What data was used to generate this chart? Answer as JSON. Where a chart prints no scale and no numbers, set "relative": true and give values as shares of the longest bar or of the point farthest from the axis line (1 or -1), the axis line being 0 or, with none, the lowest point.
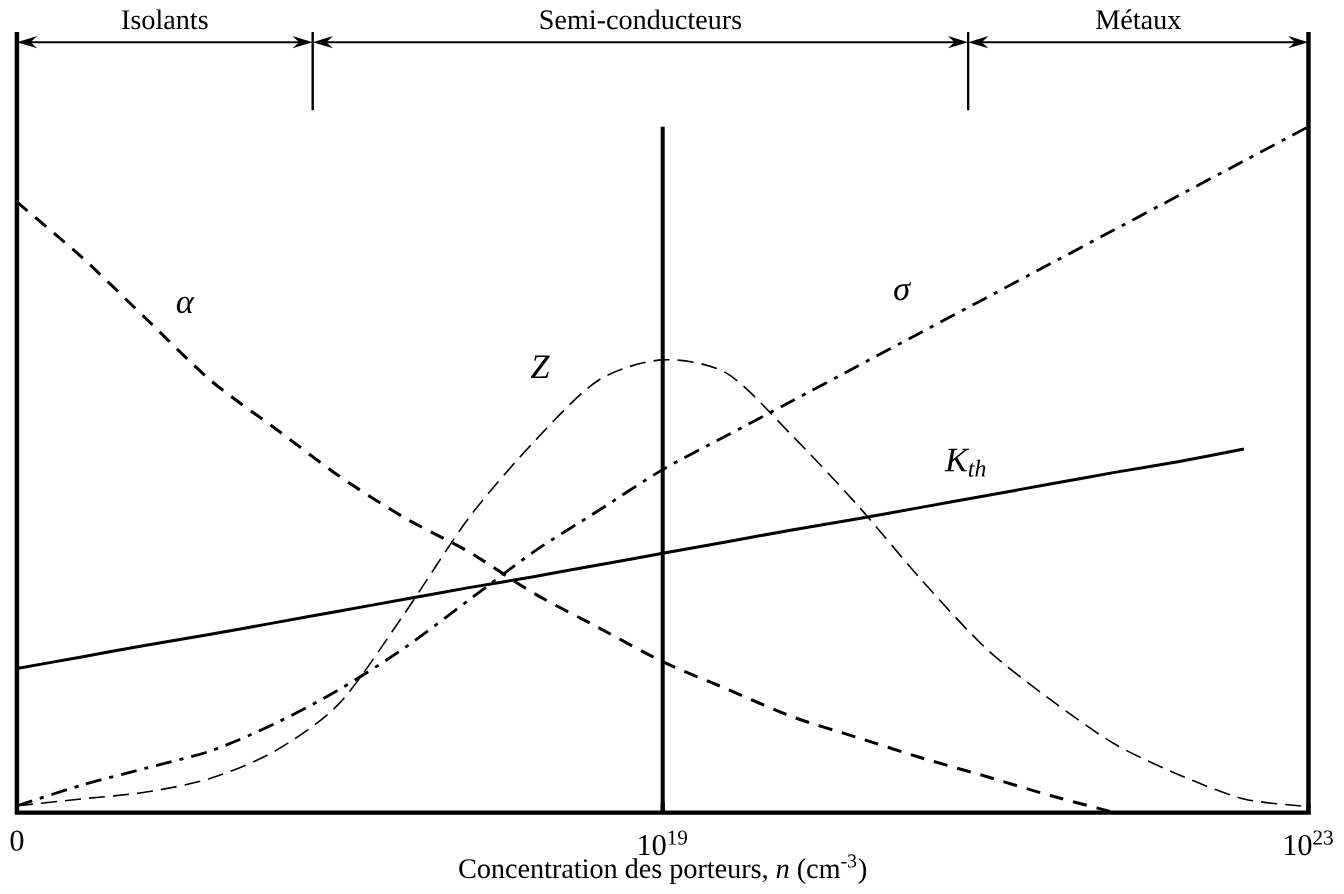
{
  "chart_data": {
    "type": "line",
    "relative": true,
    "xlabel": "Concentration des porteurs, *n* (cm$^{-3}$)",
    "categories": [
      "0",
      null,
      null,
      null,
      null,
      null,
      null,
      null,
      null,
      null,
      "10$^{19}$",
      null,
      null,
      null,
      null,
      null,
      null,
      null,
      null,
      null,
      "10$^{23}$"
    ],
    "series": [
      {
        "name": "α",
        "color": "#000000",
        "line_style": "dashed",
        "values": [
          0.89,
          0.81,
          0.72,
          0.63,
          0.56,
          0.49,
          0.43,
          0.38,
          0.32,
          0.27,
          0.22,
          0.18,
          0.14,
          0.11,
          0.08,
          0.053,
          0.025,
          0.0,
          null,
          null,
          null
        ]
      },
      {
        "name": "Z",
        "color": "#000000",
        "line_style": "dashed",
        "values": [
          0.01,
          0.02,
          0.03,
          0.05,
          0.09,
          0.16,
          0.29,
          0.43,
          0.54,
          0.63,
          0.66,
          0.64,
          0.55,
          0.45,
          0.34,
          0.24,
          0.165,
          0.1,
          0.055,
          0.02,
          0.009
        ]
      },
      {
        "name": "σ",
        "color": "#000000",
        "line_style": "dashdot",
        "values": [
          0.01,
          0.04,
          0.065,
          0.09,
          0.13,
          0.18,
          0.24,
          0.31,
          0.38,
          0.44,
          0.5,
          0.55,
          0.6,
          0.65,
          0.7,
          0.75,
          0.8,
          0.85,
          0.9,
          0.95,
          1.0
        ]
      },
      {
        "name": "K$_{th}$",
        "color": "#000000",
        "line_style": "solid",
        "values": [
          0.21,
          0.227,
          0.244,
          0.26,
          0.277,
          0.294,
          0.311,
          0.328,
          0.344,
          0.361,
          0.378,
          0.395,
          0.412,
          0.428,
          0.445,
          0.462,
          0.479,
          0.496,
          0.512,
          0.53,
          null
        ]
      }
    ],
    "ref_lines": [
      {
        "axis": "x",
        "value": "10$^{19}$"
      }
    ],
    "annotations": [
      "Isolants",
      "Semi-conducteurs",
      "Métaux"
    ]
  }
}
